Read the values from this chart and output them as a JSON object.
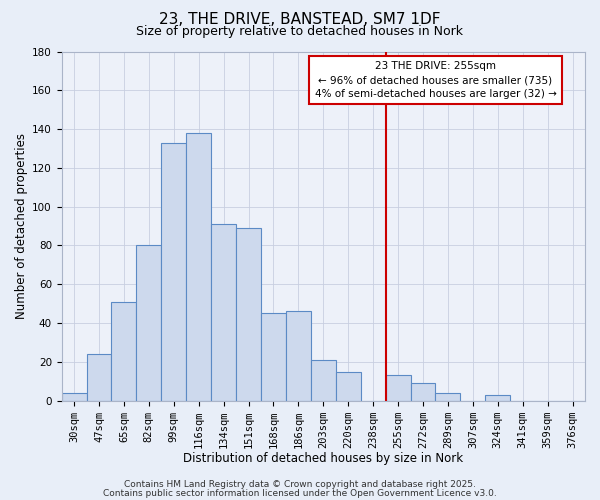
{
  "title": "23, THE DRIVE, BANSTEAD, SM7 1DF",
  "subtitle": "Size of property relative to detached houses in Nork",
  "xlabel": "Distribution of detached houses by size in Nork",
  "ylabel": "Number of detached properties",
  "bar_labels": [
    "30sqm",
    "47sqm",
    "65sqm",
    "82sqm",
    "99sqm",
    "116sqm",
    "134sqm",
    "151sqm",
    "168sqm",
    "186sqm",
    "203sqm",
    "220sqm",
    "238sqm",
    "255sqm",
    "272sqm",
    "289sqm",
    "307sqm",
    "324sqm",
    "341sqm",
    "359sqm",
    "376sqm"
  ],
  "bar_values": [
    4,
    24,
    51,
    80,
    133,
    138,
    91,
    89,
    45,
    46,
    21,
    15,
    0,
    13,
    9,
    4,
    0,
    3,
    0,
    0,
    0
  ],
  "bar_color": "#cdd9ed",
  "bar_edge_color": "#5b8ac5",
  "ylim": [
    0,
    180
  ],
  "yticks": [
    0,
    20,
    40,
    60,
    80,
    100,
    120,
    140,
    160,
    180
  ],
  "property_line_index": 13,
  "property_line_color": "#cc0000",
  "annotation_title": "23 THE DRIVE: 255sqm",
  "annotation_line1": "← 96% of detached houses are smaller (735)",
  "annotation_line2": "4% of semi-detached houses are larger (32) →",
  "annotation_box_facecolor": "#ffffff",
  "annotation_box_edgecolor": "#cc0000",
  "footer1": "Contains HM Land Registry data © Crown copyright and database right 2025.",
  "footer2": "Contains public sector information licensed under the Open Government Licence v3.0.",
  "background_color": "#e8eef8",
  "plot_bg_color": "#edf1f9",
  "grid_color": "#c8cfe0",
  "title_fontsize": 11,
  "subtitle_fontsize": 9,
  "axis_label_fontsize": 8.5,
  "tick_fontsize": 7.5,
  "annotation_fontsize": 7.5,
  "footer_fontsize": 6.5
}
